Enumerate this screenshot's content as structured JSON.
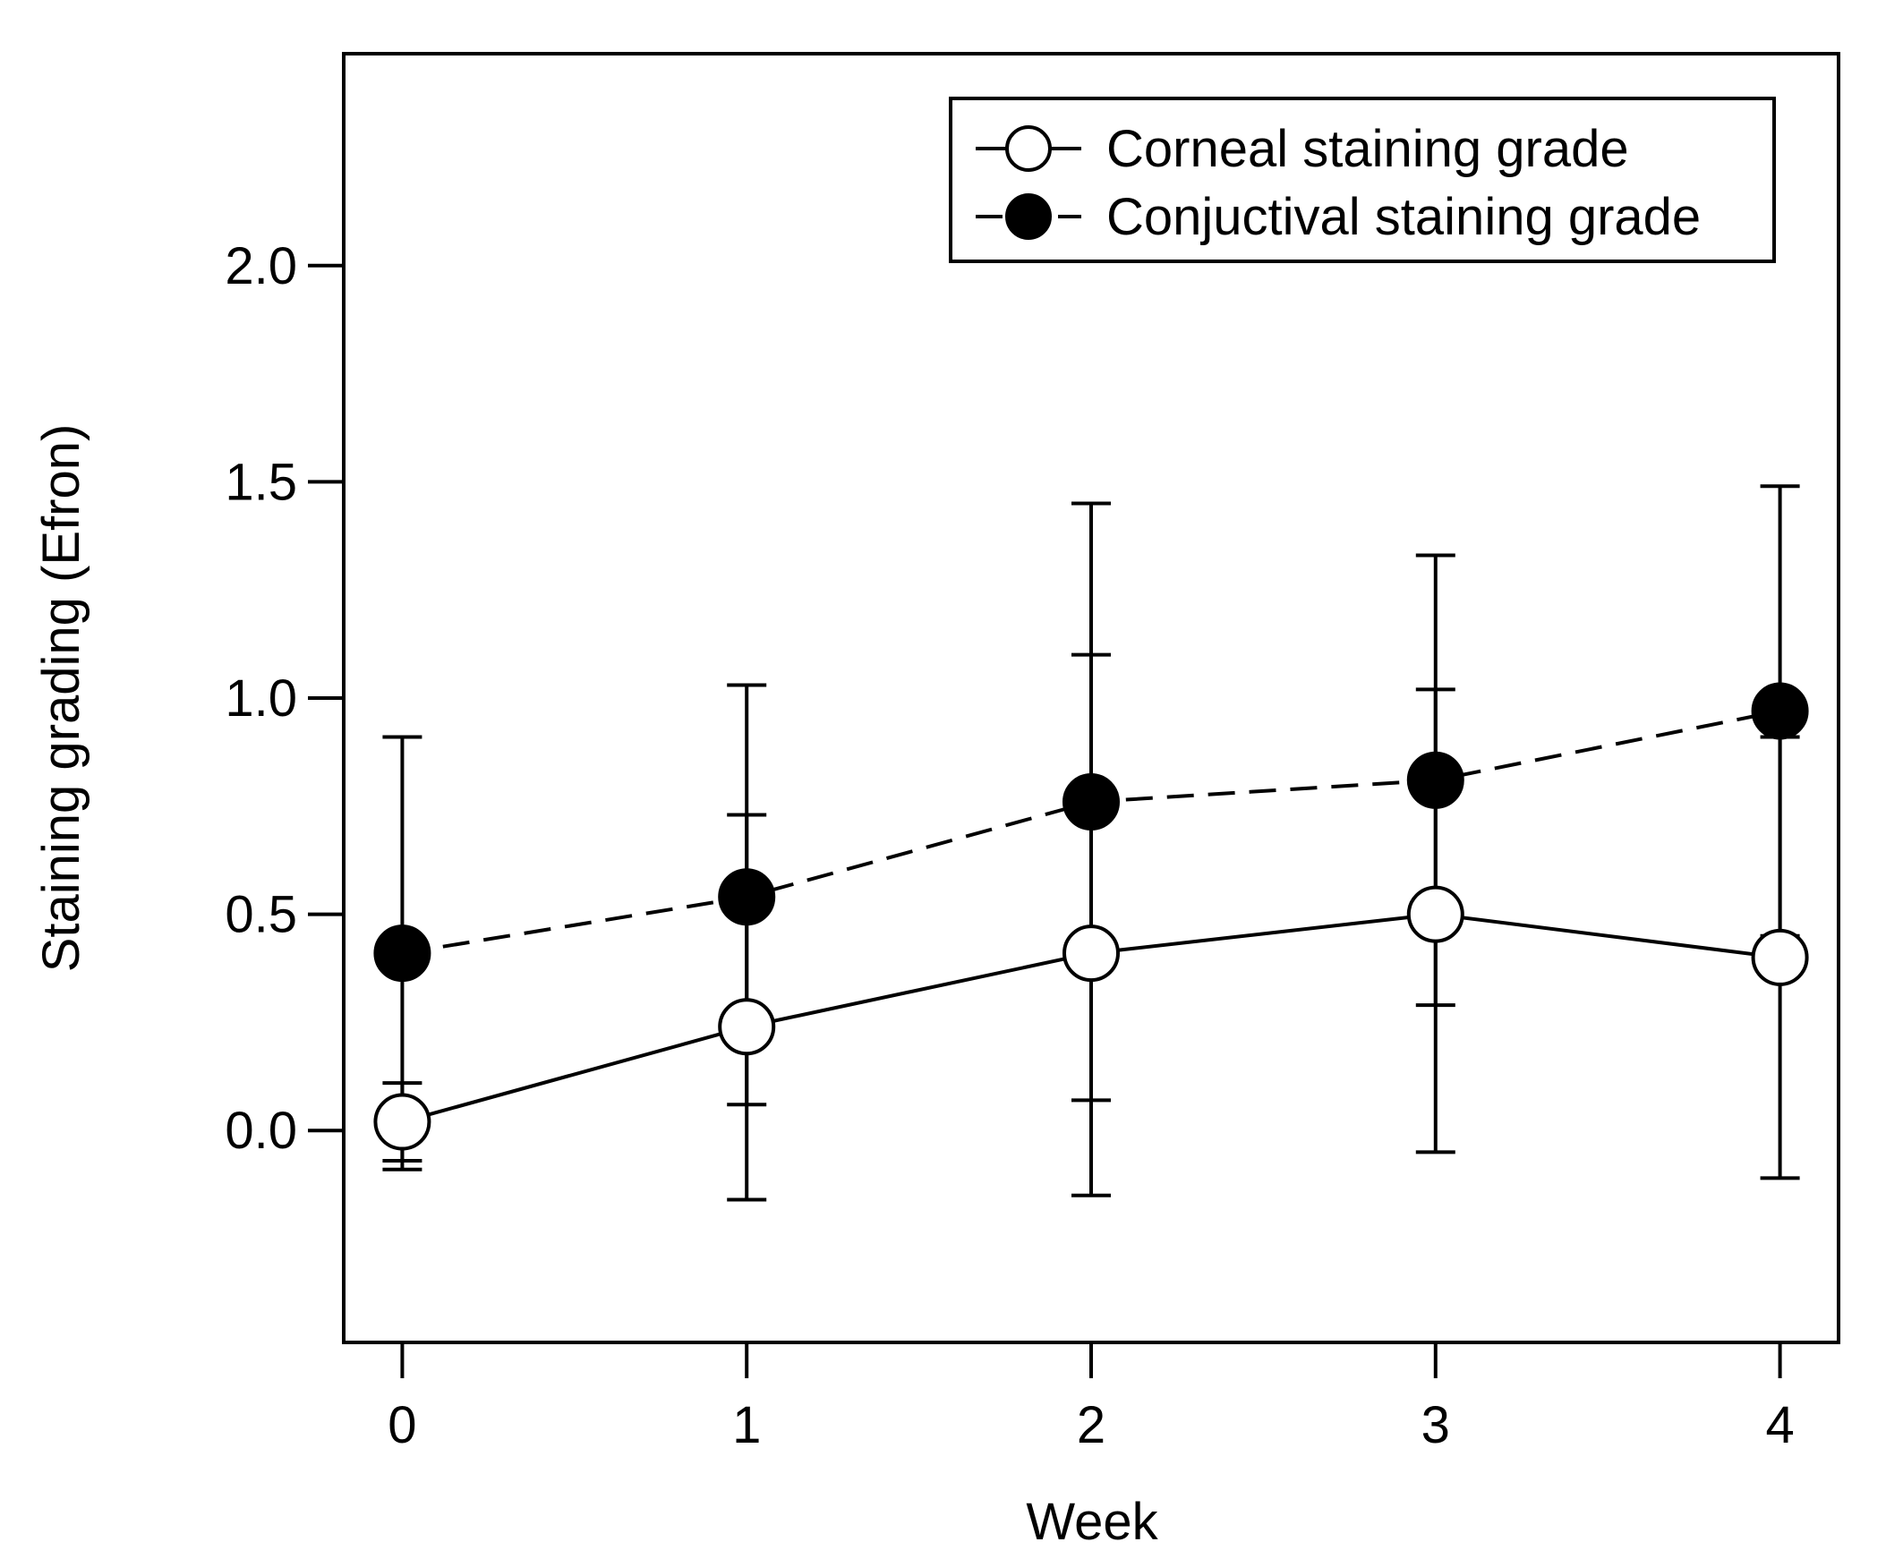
{
  "chart_data": {
    "type": "line",
    "title": "",
    "xlabel": "Week",
    "ylabel": "Staining grading (Efron)",
    "x": [
      0,
      1,
      2,
      3,
      4
    ],
    "x_ticks": [
      "0",
      "1",
      "2",
      "3",
      "4"
    ],
    "y_ticks": [
      "0.0",
      "0.5",
      "1.0",
      "1.5",
      "2.0"
    ],
    "y_tick_values": [
      0.0,
      0.5,
      1.0,
      1.5,
      2.0
    ],
    "xlim": [
      -0.17,
      4.17
    ],
    "ylim": [
      -0.49,
      2.49
    ],
    "grid": false,
    "legend_position": "top-right",
    "series": [
      {
        "name": "Corneal staining grade",
        "marker": "open-circle",
        "line_style": "solid",
        "color": "#000000",
        "values": [
          0.02,
          0.24,
          0.41,
          0.5,
          0.4
        ],
        "error_low": [
          -0.07,
          -0.16,
          -0.15,
          -0.05,
          -0.11
        ],
        "error_high": [
          0.11,
          0.73,
          1.1,
          1.02,
          0.91
        ]
      },
      {
        "name": "Conjuctival staining grade",
        "marker": "filled-circle",
        "line_style": "dashed",
        "color": "#000000",
        "values": [
          0.41,
          0.54,
          0.76,
          0.81,
          0.97
        ],
        "error_low": [
          -0.09,
          0.06,
          0.07,
          0.29,
          0.45
        ],
        "error_high": [
          0.91,
          1.03,
          1.45,
          1.33,
          1.49
        ]
      }
    ]
  }
}
